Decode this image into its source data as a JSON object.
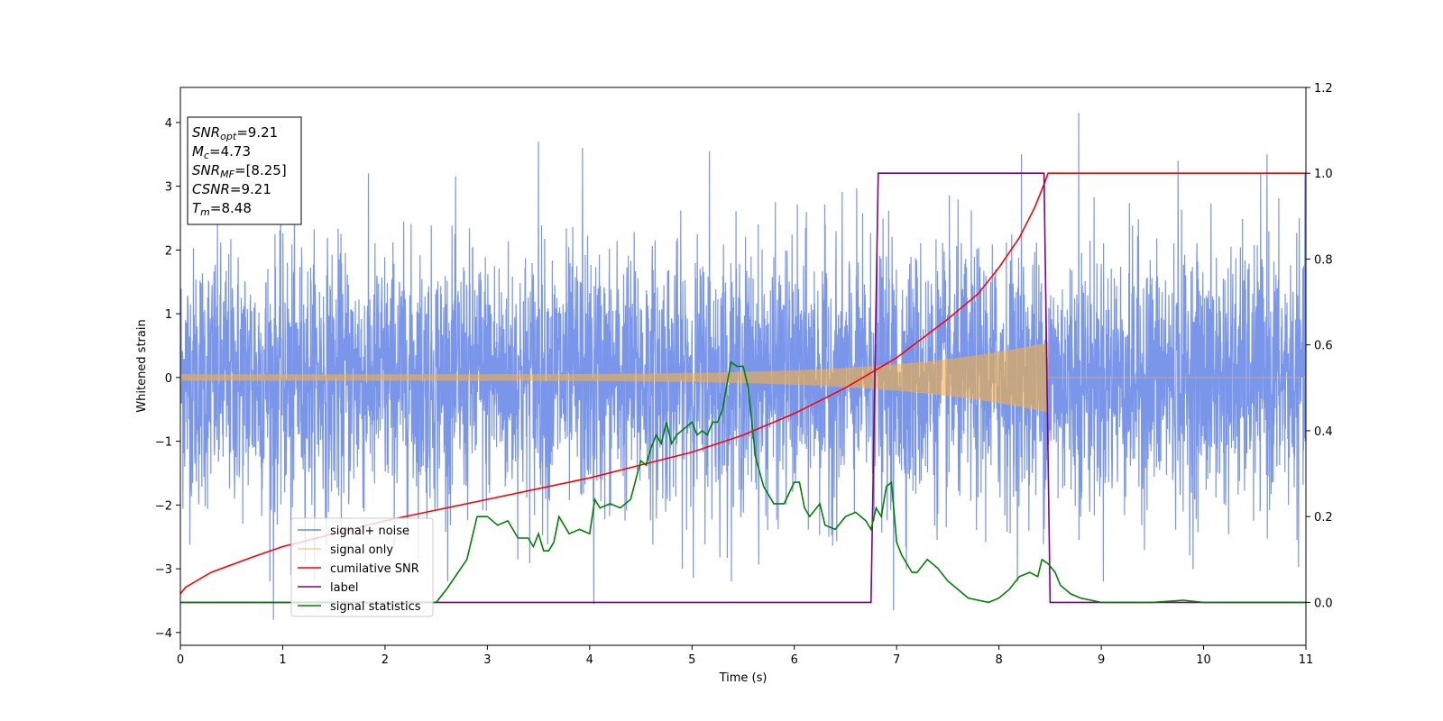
{
  "chart_data": {
    "type": "line",
    "title": "",
    "xlabel": "Time (s)",
    "ylabel": "Whitened strain",
    "xlim": [
      0,
      11
    ],
    "ylim": [
      -4.2,
      4.55
    ],
    "y2lim": [
      -0.1,
      1.2
    ],
    "x_ticks": [
      0,
      1,
      2,
      3,
      4,
      5,
      6,
      7,
      8,
      9,
      10,
      11
    ],
    "y_ticks": [
      -4,
      -3,
      -2,
      -1,
      0,
      1,
      2,
      3,
      4
    ],
    "y_tick_labels": [
      "−4",
      "−3",
      "−2",
      "−1",
      "0",
      "1",
      "2",
      "3",
      "4"
    ],
    "y2_ticks": [
      0.0,
      0.2,
      0.4,
      0.6,
      0.8,
      1.0,
      1.2
    ],
    "y2_tick_labels": [
      "0.0",
      "0.2",
      "0.4",
      "0.6",
      "0.8",
      "1.0",
      "1.2"
    ],
    "grid": false,
    "legend_position": "lower-left",
    "annotation_box": {
      "lines": [
        {
          "math": "SNR",
          "sub": "opt",
          "rest": "=9.21"
        },
        {
          "math": "M",
          "sub": "c",
          "rest": "=4.73"
        },
        {
          "math": "SNR",
          "sub": "MF",
          "rest": "=[8.25]"
        },
        {
          "math": "CSNR",
          "sub": "",
          "rest": "=9.21"
        },
        {
          "math": "T",
          "sub": "m",
          "rest": "=8.48"
        }
      ]
    },
    "series": [
      {
        "name": "signal+ noise",
        "color": "#4169e1",
        "axis": "left",
        "kind": "noise",
        "noise_sigma": 1.0,
        "peaks": [
          {
            "x": 0.91,
            "y": -3.8
          },
          {
            "x": 1.08,
            "y": -3.1
          },
          {
            "x": 3.5,
            "y": 3.7
          },
          {
            "x": 3.93,
            "y": 3.6
          },
          {
            "x": 4.04,
            "y": -3.55
          },
          {
            "x": 5.17,
            "y": 3.55
          },
          {
            "x": 6.97,
            "y": -3.65
          },
          {
            "x": 8.22,
            "y": 3.5
          },
          {
            "x": 8.78,
            "y": 4.15
          },
          {
            "x": 9.75,
            "y": 3.4
          },
          {
            "x": 10.62,
            "y": 3.5
          }
        ]
      },
      {
        "name": "signal only",
        "color": "#f5b041",
        "axis": "left",
        "kind": "chirp",
        "chirp_tm": 8.48,
        "chirp_amp_start": 0.05,
        "chirp_amp_end": 0.55
      },
      {
        "name": "cumilative SNR",
        "color": "#ff0000",
        "axis": "right",
        "x": [
          0.0,
          0.05,
          0.3,
          0.7,
          1.0,
          1.5,
          2.0,
          2.5,
          3.0,
          3.5,
          4.0,
          4.5,
          5.0,
          5.5,
          6.0,
          6.5,
          7.0,
          7.5,
          7.8,
          8.0,
          8.2,
          8.35,
          8.45,
          8.48,
          11.0
        ],
        "y": [
          0.02,
          0.035,
          0.07,
          0.105,
          0.13,
          0.16,
          0.19,
          0.215,
          0.24,
          0.265,
          0.29,
          0.32,
          0.35,
          0.39,
          0.44,
          0.5,
          0.57,
          0.66,
          0.72,
          0.78,
          0.85,
          0.92,
          0.98,
          1.0,
          1.0
        ]
      },
      {
        "name": "label",
        "color": "#800080",
        "axis": "right",
        "x": [
          0.0,
          6.75,
          6.82,
          8.44,
          8.5,
          11.0
        ],
        "y": [
          0.0,
          0.0,
          1.0,
          1.0,
          0.0,
          0.0
        ]
      },
      {
        "name": "signal statistics",
        "color": "#008000",
        "axis": "right",
        "x": [
          0.0,
          0.5,
          1.0,
          1.5,
          2.0,
          2.5,
          2.6,
          2.8,
          2.9,
          3.0,
          3.1,
          3.2,
          3.3,
          3.4,
          3.45,
          3.5,
          3.55,
          3.6,
          3.65,
          3.7,
          3.8,
          3.9,
          4.0,
          4.05,
          4.1,
          4.2,
          4.3,
          4.4,
          4.5,
          4.55,
          4.6,
          4.65,
          4.7,
          4.75,
          4.8,
          4.85,
          4.9,
          5.0,
          5.05,
          5.1,
          5.15,
          5.2,
          5.25,
          5.3,
          5.38,
          5.44,
          5.5,
          5.55,
          5.62,
          5.7,
          5.8,
          5.9,
          6.0,
          6.05,
          6.1,
          6.15,
          6.25,
          6.3,
          6.4,
          6.5,
          6.6,
          6.7,
          6.75,
          6.8,
          6.85,
          6.9,
          6.95,
          7.0,
          7.05,
          7.15,
          7.2,
          7.3,
          7.4,
          7.5,
          7.6,
          7.7,
          7.9,
          8.0,
          8.1,
          8.2,
          8.3,
          8.38,
          8.42,
          8.48,
          8.55,
          8.6,
          8.7,
          8.8,
          9.0,
          9.5,
          9.8,
          10.0,
          10.5,
          11.0
        ],
        "y": [
          0.0,
          0.0,
          0.0,
          0.0,
          0.0,
          0.0,
          0.03,
          0.1,
          0.2,
          0.2,
          0.18,
          0.19,
          0.15,
          0.15,
          0.13,
          0.16,
          0.12,
          0.12,
          0.14,
          0.2,
          0.16,
          0.17,
          0.16,
          0.24,
          0.22,
          0.23,
          0.22,
          0.24,
          0.33,
          0.32,
          0.36,
          0.39,
          0.37,
          0.42,
          0.37,
          0.39,
          0.4,
          0.42,
          0.39,
          0.4,
          0.39,
          0.42,
          0.42,
          0.45,
          0.56,
          0.55,
          0.55,
          0.5,
          0.34,
          0.27,
          0.23,
          0.23,
          0.28,
          0.28,
          0.22,
          0.2,
          0.23,
          0.18,
          0.17,
          0.2,
          0.21,
          0.19,
          0.17,
          0.22,
          0.2,
          0.27,
          0.28,
          0.14,
          0.11,
          0.07,
          0.07,
          0.1,
          0.08,
          0.05,
          0.03,
          0.01,
          0.0,
          0.01,
          0.03,
          0.06,
          0.07,
          0.06,
          0.1,
          0.09,
          0.07,
          0.04,
          0.02,
          0.01,
          0.0,
          0.0,
          0.005,
          0.0,
          0.0,
          0.0
        ]
      }
    ]
  }
}
